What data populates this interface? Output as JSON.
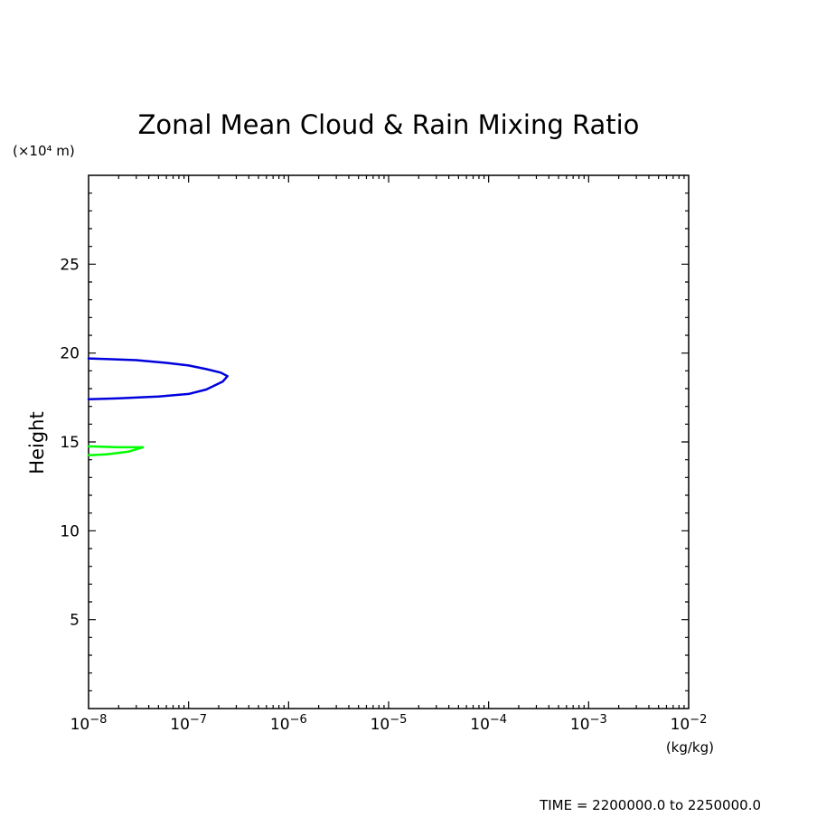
{
  "chart_data": {
    "type": "line",
    "title": "Zonal Mean Cloud & Rain Mixing Ratio",
    "ylabel": "Height",
    "yunit": "(×10⁴ m)",
    "xunit": "(kg/kg)",
    "xscale": "log",
    "xlim": [
      1e-08,
      0.01
    ],
    "ylim": [
      0,
      30
    ],
    "yticks": [
      5,
      10,
      15,
      20,
      25
    ],
    "xticks": [
      {
        "mantissa": "10",
        "exponent": "−8"
      },
      {
        "mantissa": "10",
        "exponent": "−7"
      },
      {
        "mantissa": "10",
        "exponent": "−6"
      },
      {
        "mantissa": "10",
        "exponent": "−5"
      },
      {
        "mantissa": "10",
        "exponent": "−4"
      },
      {
        "mantissa": "10",
        "exponent": "−3"
      },
      {
        "mantissa": "10",
        "exponent": "−2"
      }
    ],
    "grid": false,
    "series": [
      {
        "color": "#0000dd",
        "points": [
          [
            1e-08,
            19.7
          ],
          [
            3e-08,
            19.6
          ],
          [
            6e-08,
            19.45
          ],
          [
            1e-07,
            19.3
          ],
          [
            1.5e-07,
            19.1
          ],
          [
            2.1e-07,
            18.9
          ],
          [
            2.45e-07,
            18.7
          ],
          [
            2.2e-07,
            18.4
          ],
          [
            1.5e-07,
            17.95
          ],
          [
            1e-07,
            17.7
          ],
          [
            5e-08,
            17.55
          ],
          [
            2e-08,
            17.45
          ],
          [
            1e-08,
            17.4
          ]
        ]
      },
      {
        "color": "#00ff00",
        "points": [
          [
            1e-08,
            14.75
          ],
          [
            2e-08,
            14.7
          ],
          [
            3.5e-08,
            14.7
          ],
          [
            2.5e-08,
            14.45
          ],
          [
            1.5e-08,
            14.3
          ],
          [
            1e-08,
            14.25
          ]
        ]
      }
    ],
    "footer": "TIME = 2200000.0 to 2250000.0"
  }
}
